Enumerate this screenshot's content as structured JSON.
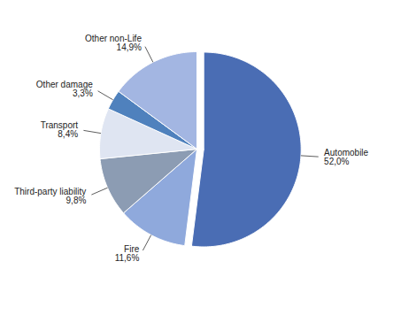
{
  "chart_data": {
    "type": "pie",
    "categories": [
      "Automobile",
      "Fire",
      "Third-party liability",
      "Transport",
      "Other damage",
      "Other non-Life"
    ],
    "values": [
      52.0,
      11.6,
      9.8,
      8.4,
      3.3,
      14.9
    ],
    "value_labels": [
      "52,0%",
      "11,6%",
      "9,8%",
      "8,4%",
      "3,3%",
      "14,9%"
    ],
    "colors": [
      "#4a6db4",
      "#8fa9dc",
      "#8c9cb3",
      "#dfe5f2",
      "#4f81bd",
      "#a3b6e2"
    ],
    "data_labels": true
  }
}
